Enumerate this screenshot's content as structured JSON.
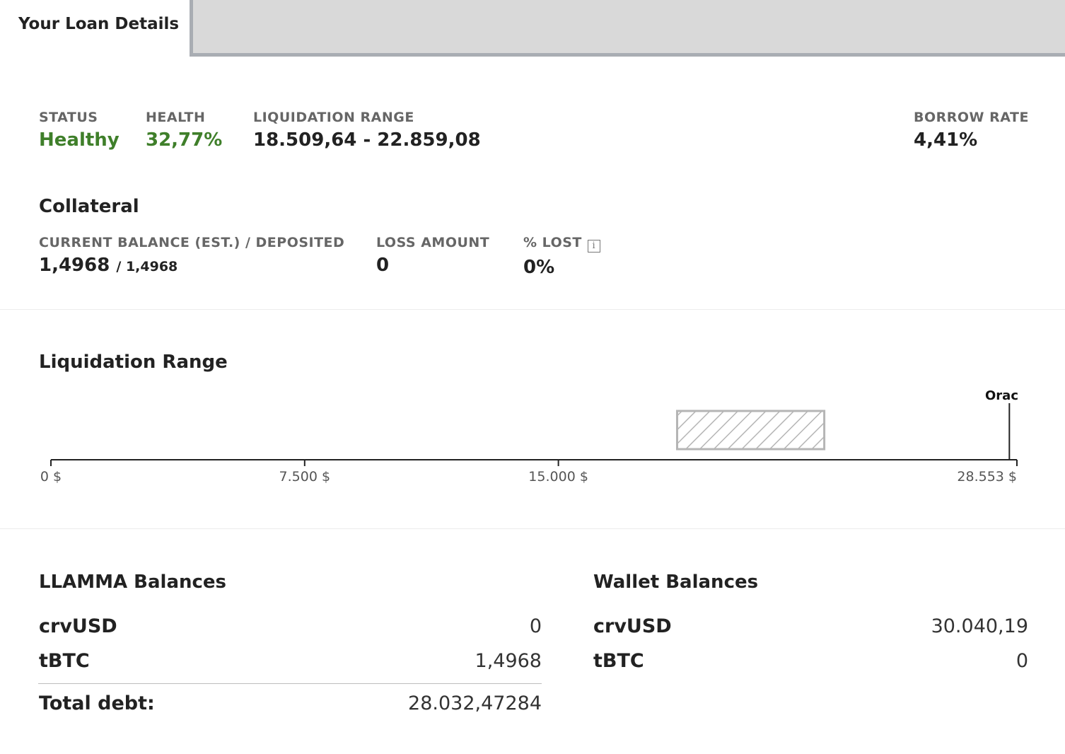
{
  "tabs": {
    "active_label": "Your Loan Details"
  },
  "loan": {
    "status_label": "STATUS",
    "status_value": "Healthy",
    "health_label": "HEALTH",
    "health_value": "32,77%",
    "liq_range_label": "LIQUIDATION RANGE",
    "liq_range_value": "18.509,64 - 22.859,08",
    "borrow_rate_label": "BORROW RATE",
    "borrow_rate_value": "4,41%"
  },
  "collateral": {
    "title": "Collateral",
    "balance_label": "CURRENT BALANCE (EST.) / DEPOSITED",
    "balance_current": "1,4968",
    "balance_deposited": "/ 1,4968",
    "loss_label": "LOSS AMOUNT",
    "loss_value": "0",
    "lost_pct_label": "% LOST",
    "lost_pct_value": "0%",
    "info_icon": "info-icon"
  },
  "liquidation_chart": {
    "title": "Liquidation Range",
    "oracle_label": "Orac",
    "ticks": [
      "0 $",
      "7.500 $",
      "15.000 $",
      "28.553 $"
    ]
  },
  "chart_data": {
    "type": "bar",
    "title": "Liquidation Range",
    "x_range": [
      0,
      28553
    ],
    "ticks": [
      0,
      7500,
      15000,
      28553
    ],
    "tick_labels": [
      "0 $",
      "7.500 $",
      "15.000 $",
      "28.553 $"
    ],
    "range_start": 18509.64,
    "range_end": 22859.08,
    "oracle_price": 28330,
    "oracle_label": "Orac"
  },
  "llamma": {
    "title": "LLAMMA Balances",
    "rows": [
      {
        "name": "crvUSD",
        "value": "0"
      },
      {
        "name": "tBTC",
        "value": "1,4968"
      }
    ],
    "total_label": "Total debt:",
    "total_value": "28.032,47284"
  },
  "wallet": {
    "title": "Wallet Balances",
    "rows": [
      {
        "name": "crvUSD",
        "value": "30.040,19"
      },
      {
        "name": "tBTC",
        "value": "0"
      }
    ]
  }
}
